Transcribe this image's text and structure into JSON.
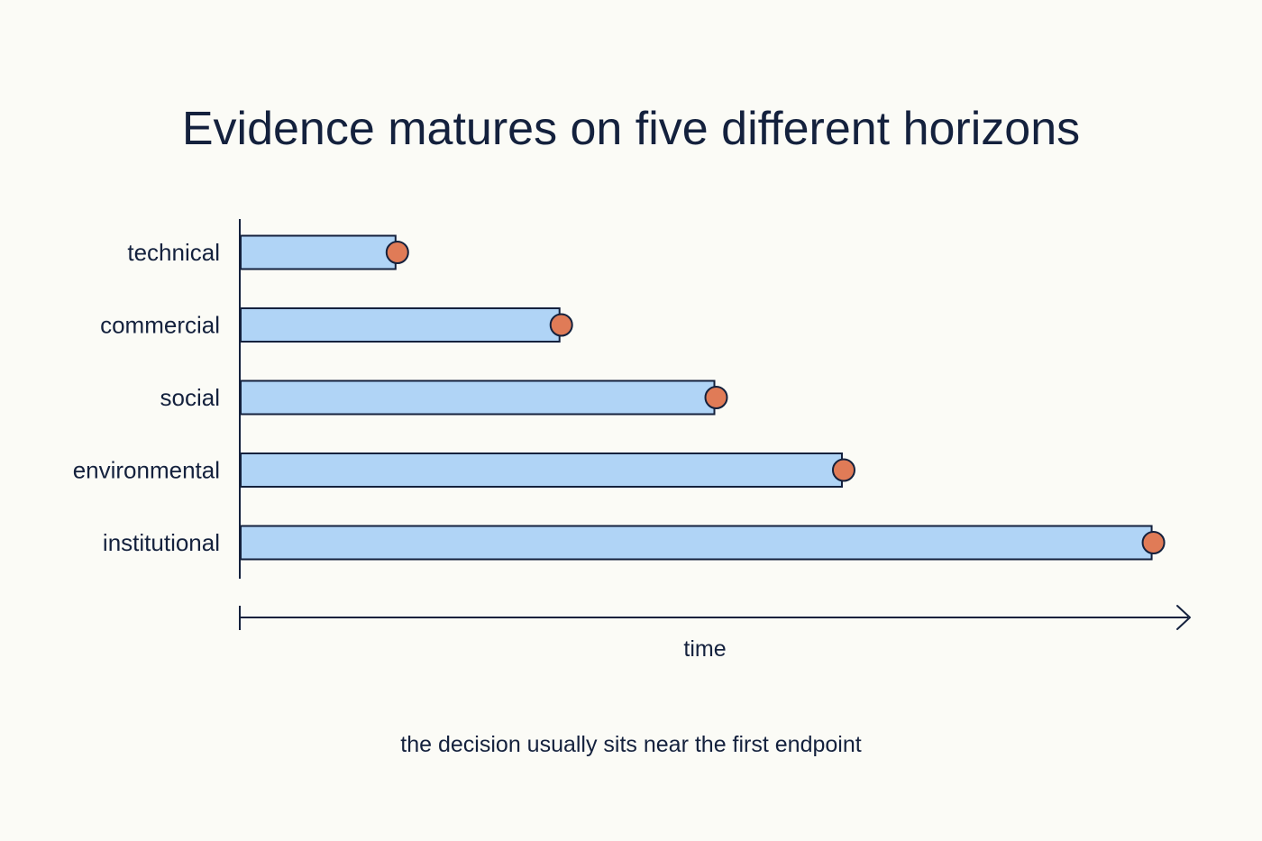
{
  "chart_data": {
    "type": "bar",
    "orientation": "horizontal",
    "title": "Evidence matures on five different horizons",
    "xlabel": "time",
    "ylabel": "",
    "caption": "the decision usually sits near the first endpoint",
    "categories": [
      "technical",
      "commercial",
      "social",
      "environmental",
      "institutional"
    ],
    "values": [
      17,
      35,
      52,
      66,
      100
    ],
    "xlim": [
      0,
      104
    ],
    "x_tick_labels": false,
    "grid": false,
    "legend": "none",
    "endpoint_markers": true,
    "colors": {
      "bar_fill": "#b0d4f6",
      "bar_stroke": "#14213d",
      "marker_fill": "#e07b57",
      "text": "#14213d",
      "axis": "#14213d",
      "background": "#fbfbf6"
    }
  }
}
